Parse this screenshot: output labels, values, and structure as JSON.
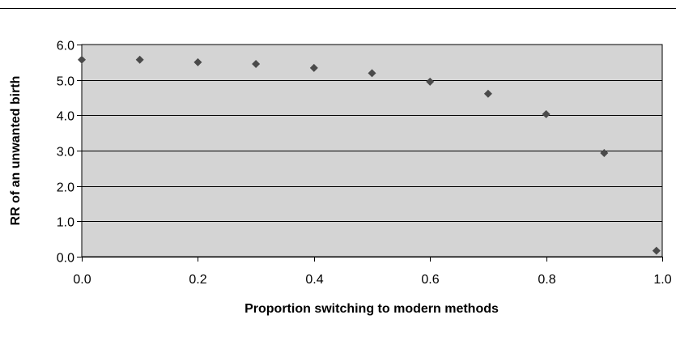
{
  "chart_data": {
    "type": "scatter",
    "title": "",
    "xlabel": "Proportion switching to modern methods",
    "ylabel": "RR of an unwanted birth",
    "xlim": [
      0.0,
      1.0
    ],
    "ylim": [
      0.0,
      6.0
    ],
    "x_ticks": [
      0.0,
      0.2,
      0.4,
      0.6,
      0.8,
      1.0
    ],
    "x_tick_labels": [
      "0.0",
      "0.2",
      "0.4",
      "0.6",
      "0.8",
      "1.0"
    ],
    "y_ticks": [
      0.0,
      1.0,
      2.0,
      3.0,
      4.0,
      5.0,
      6.0
    ],
    "y_tick_labels": [
      "0.0",
      "1.0",
      "2.0",
      "3.0",
      "4.0",
      "5.0",
      "6.0"
    ],
    "grid": "horizontal",
    "legend": "none",
    "plot_background": "#d4d4d4",
    "marker_color": "#4a4a4a",
    "marker_shape": "diamond",
    "x": [
      0.0,
      0.1,
      0.2,
      0.3,
      0.4,
      0.5,
      0.6,
      0.7,
      0.8,
      0.9,
      0.99
    ],
    "y": [
      5.57,
      5.57,
      5.5,
      5.45,
      5.34,
      5.19,
      4.95,
      4.61,
      4.03,
      2.93,
      0.17
    ]
  }
}
